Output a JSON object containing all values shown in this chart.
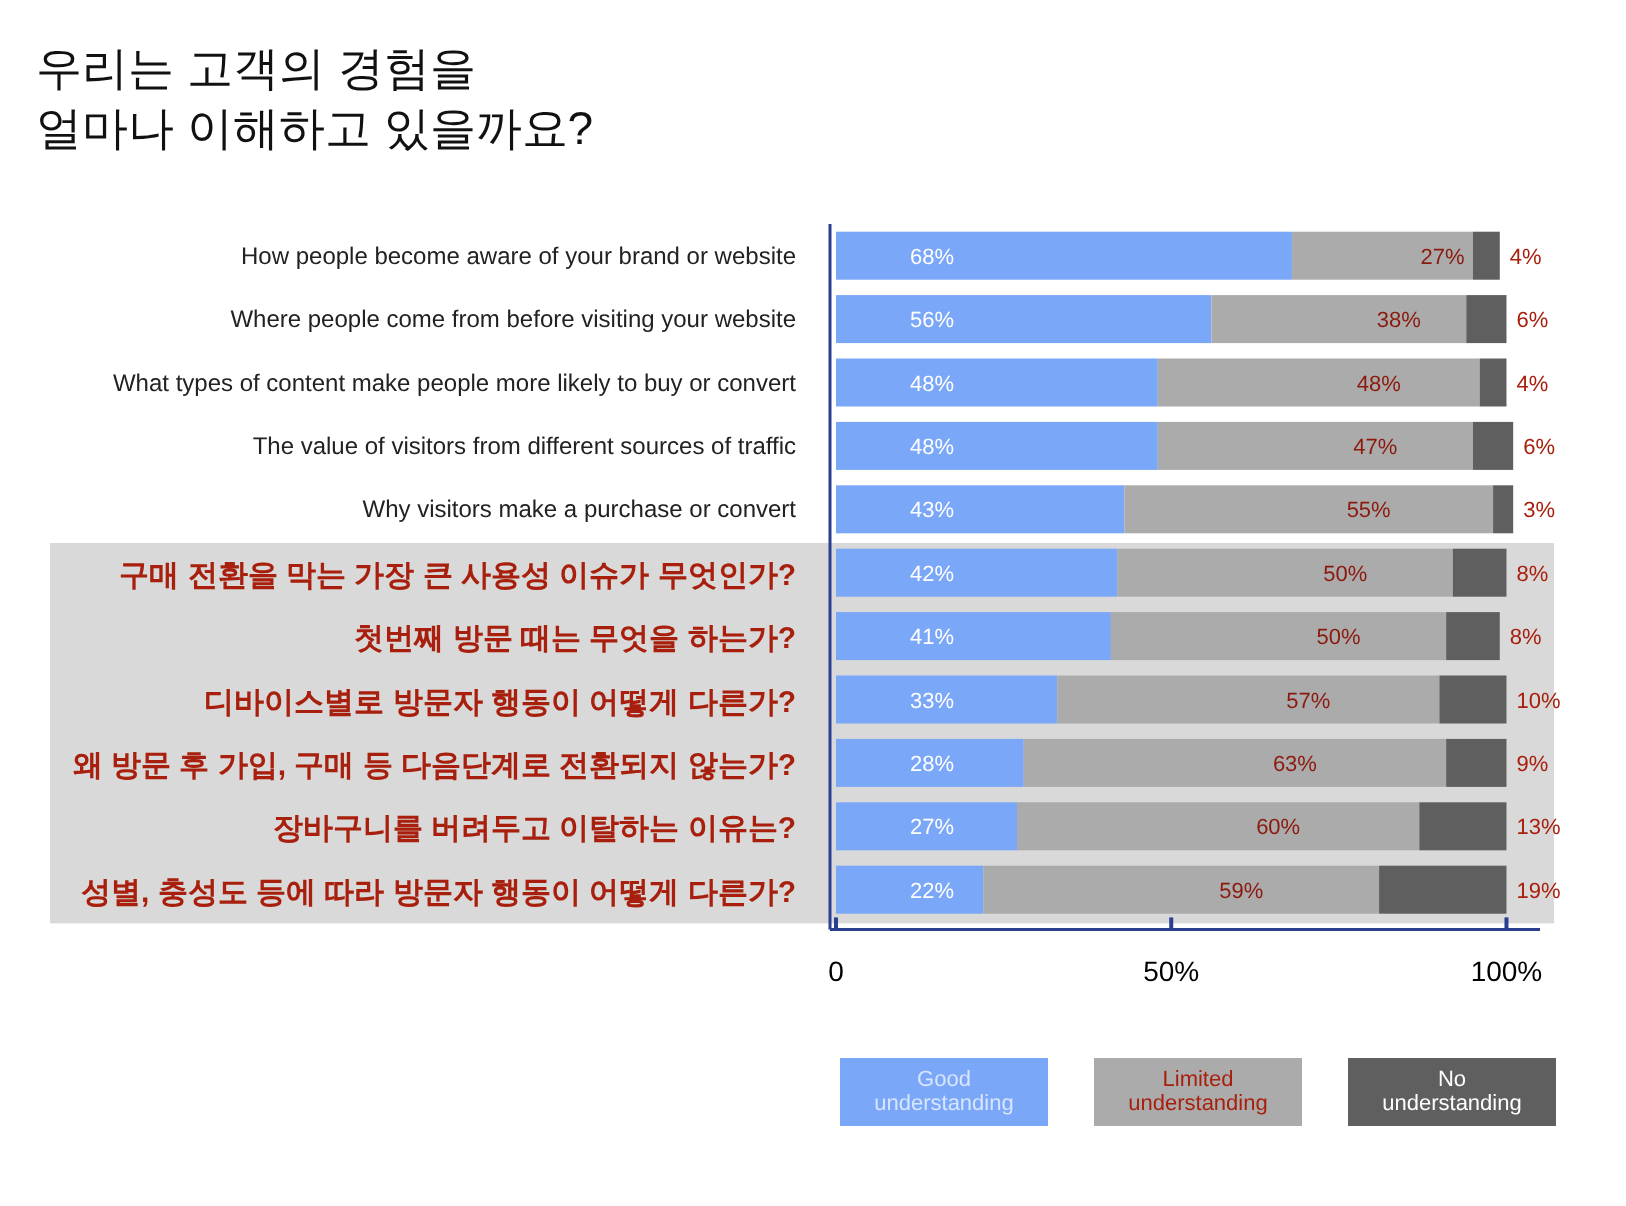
{
  "chart_data": {
    "type": "bar",
    "orientation": "horizontal",
    "stacked": true,
    "title": "우리는 고객의 경험을\n얼마나 이해하고 있을까요?",
    "categories": [
      "How people become aware of your brand or website",
      "Where people come from before visiting your website",
      "What types of content make people more likely to buy or convert",
      "The value of visitors from different sources of traffic",
      "Why visitors make a purchase or convert",
      "구매 전환을 막는 가장 큰 사용성 이슈가 무엇인가?",
      "첫번째 방문 때는 무엇을 하는가?",
      "디바이스별로 방문자 행동이 어떻게 다른가?",
      "왜 방문 후 가입, 구매 등 다음단계로 전환되지 않는가?",
      "장바구니를 버려두고 이탈하는 이유는?",
      "성별, 충성도 등에 따라 방문자 행동이 어떻게 다른가?"
    ],
    "series": [
      {
        "name": "Good understanding",
        "color": "#7aa7f7",
        "values": [
          68,
          56,
          48,
          48,
          43,
          42,
          41,
          33,
          28,
          27,
          22
        ],
        "value_labels": [
          "68%",
          "56%",
          "48%",
          "48%",
          "43%",
          "42%",
          "41%",
          "33%",
          "28%",
          "27%",
          "22%"
        ]
      },
      {
        "name": "Limited understanding",
        "color": "#ababab",
        "values": [
          27,
          38,
          48,
          47,
          55,
          50,
          50,
          57,
          63,
          60,
          59
        ],
        "value_labels": [
          "27%",
          "38%",
          "48%",
          "47%",
          "55%",
          "50%",
          "50%",
          "57%",
          "63%",
          "60%",
          "59%"
        ]
      },
      {
        "name": "No understanding",
        "color": "#5f5f5f",
        "values": [
          4,
          6,
          4,
          6,
          3,
          8,
          8,
          10,
          9,
          13,
          19
        ],
        "value_labels": [
          "4%",
          "6%",
          "4%",
          "6%",
          "3%",
          "8%",
          "8%",
          "10%",
          "9%",
          "13%",
          "19%"
        ]
      }
    ],
    "xlim": [
      0,
      105
    ],
    "xticks": [
      0,
      {
        "value": 50,
        "label": "50%"
      },
      {
        "value": 100,
        "label": "100%"
      }
    ],
    "bands": [
      {
        "axis": "y",
        "from": "구매 전환을 막는 가장 큰 사용성 이슈가 무엇인가?",
        "to": "성별, 충성도 등에 따라 방문자 행동이 어떻게 다른가?",
        "color": "#d9d9d9"
      }
    ],
    "legend": "bottom right",
    "grid": false
  }
}
